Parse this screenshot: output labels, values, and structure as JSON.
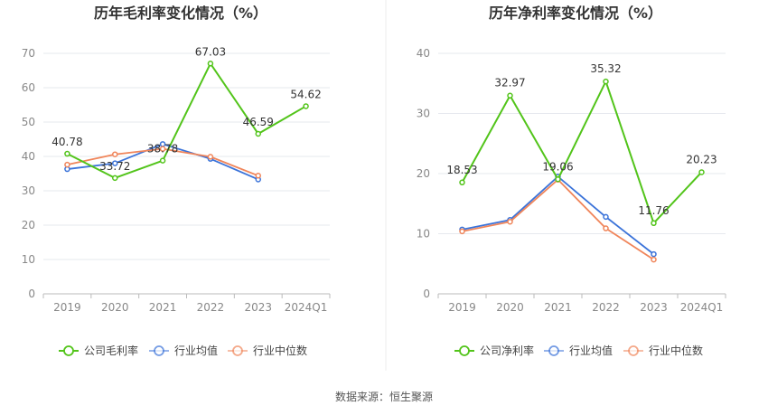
{
  "chart_data": [
    {
      "type": "line",
      "title": "历年毛利率变化情况（%）",
      "categories": [
        "2019",
        "2020",
        "2021",
        "2022",
        "2023",
        "2024Q1"
      ],
      "ylim": [
        0,
        70
      ],
      "yticks": [
        0,
        10,
        20,
        30,
        40,
        50,
        60,
        70
      ],
      "grid": true,
      "legend_position": "bottom",
      "series": [
        {
          "name": "公司毛利率",
          "color": "#52c41a",
          "values": [
            40.78,
            33.72,
            38.78,
            67.03,
            46.59,
            54.62
          ],
          "labels": [
            "40.78",
            "33.72",
            "38.78",
            "67.03",
            "46.59",
            "54.62"
          ]
        },
        {
          "name": "行业均值",
          "color": "#3b73d9",
          "values": [
            36.3,
            38.0,
            43.6,
            39.3,
            33.3,
            null
          ]
        },
        {
          "name": "行业中位数",
          "color": "#f0855a",
          "values": [
            37.6,
            40.6,
            42.2,
            39.9,
            34.4,
            null
          ]
        }
      ]
    },
    {
      "type": "line",
      "title": "历年净利率变化情况（%）",
      "categories": [
        "2019",
        "2020",
        "2021",
        "2022",
        "2023",
        "2024Q1"
      ],
      "ylim": [
        0,
        40
      ],
      "yticks": [
        0,
        10,
        20,
        30,
        40
      ],
      "grid": true,
      "legend_position": "bottom",
      "series": [
        {
          "name": "公司净利率",
          "color": "#52c41a",
          "values": [
            18.53,
            32.97,
            19.06,
            35.32,
            11.76,
            20.23
          ],
          "labels": [
            "18.53",
            "32.97",
            "19.06",
            "35.32",
            "11.76",
            "20.23"
          ]
        },
        {
          "name": "行业均值",
          "color": "#3b73d9",
          "values": [
            10.7,
            12.3,
            19.5,
            12.8,
            6.6,
            null
          ]
        },
        {
          "name": "行业中位数",
          "color": "#f0855a",
          "values": [
            10.4,
            12.0,
            19.0,
            10.9,
            5.7,
            null
          ]
        }
      ]
    }
  ],
  "source_text": "数据来源：恒生聚源"
}
